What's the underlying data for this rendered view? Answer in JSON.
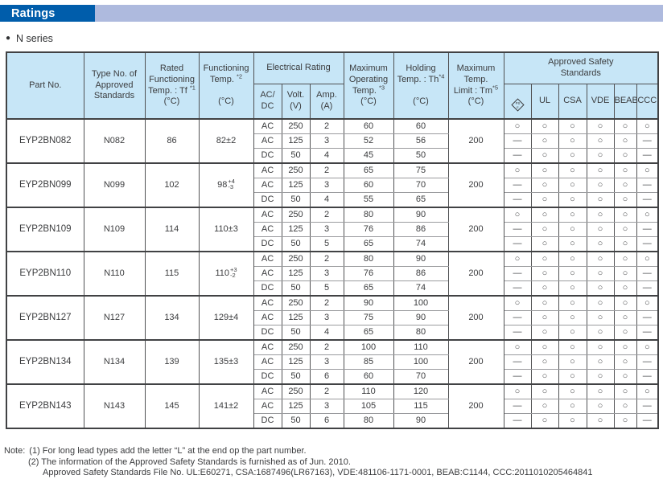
{
  "banner": {
    "title": "Ratings",
    "dark_color": "#005dab",
    "light_color": "#aebade"
  },
  "series_label": "N series",
  "table": {
    "header": {
      "part_no": "Part No.",
      "type_no": "Type No. of\nApproved\nStandards",
      "rated_l1": "Rated\nFunctioning\nTemp. : Tf ",
      "rated_sup": "*1",
      "rated_l2": "\n(°C)",
      "functioning_l1": "Functioning\nTemp. ",
      "functioning_sup": "*2",
      "functioning_l2": "\n\n(°C)",
      "electrical_rating": "Electrical Rating",
      "acdc": "AC/\nDC",
      "volt": "Volt.\n(V)",
      "amp": "Amp.\n(A)",
      "max_operating_l1": "Maximum\nOperating\nTemp. ",
      "max_operating_sup": "*3",
      "max_operating_l2": "\n(°C)",
      "holding_l1": "Holding\nTemp. : Th",
      "holding_sup": "*4",
      "holding_l2": "\n\n(°C)",
      "max_limit_l1": "Maximum\nTemp.\nLimit : Tm",
      "max_limit_sup": "*5",
      "max_limit_l2": "\n(°C)",
      "approved": "Approved Safety\nStandards",
      "pse_mark": {
        "line1": "PS",
        "line2": "E"
      },
      "approvals": [
        "UL",
        "CSA",
        "VDE",
        "BEAB",
        "CCC"
      ],
      "approval_names": [
        "pse",
        "ul",
        "csa",
        "vde",
        "beab",
        "ccc"
      ]
    },
    "rows": [
      {
        "part_no": "EYP2BN082",
        "type_no": "N082",
        "rated": "86",
        "functioning": {
          "value": "82±2"
        },
        "max_temp_limit": "200",
        "sub": [
          {
            "acdc": "AC",
            "volt": "250",
            "amp": "2",
            "max_op": "60",
            "holding": "60",
            "marks": [
              "○",
              "○",
              "○",
              "○",
              "○",
              "○"
            ]
          },
          {
            "acdc": "AC",
            "volt": "125",
            "amp": "3",
            "max_op": "52",
            "holding": "56",
            "marks": [
              "—",
              "○",
              "○",
              "○",
              "○",
              "—"
            ]
          },
          {
            "acdc": "DC",
            "volt": "50",
            "amp": "4",
            "max_op": "45",
            "holding": "50",
            "marks": [
              "—",
              "○",
              "○",
              "○",
              "○",
              "—"
            ]
          }
        ]
      },
      {
        "part_no": "EYP2BN099",
        "type_no": "N099",
        "rated": "102",
        "functioning": {
          "value": "98",
          "plus": "+4",
          "minus": "-3"
        },
        "max_temp_limit": "200",
        "sub": [
          {
            "acdc": "AC",
            "volt": "250",
            "amp": "2",
            "max_op": "65",
            "holding": "75",
            "marks": [
              "○",
              "○",
              "○",
              "○",
              "○",
              "○"
            ]
          },
          {
            "acdc": "AC",
            "volt": "125",
            "amp": "3",
            "max_op": "60",
            "holding": "70",
            "marks": [
              "—",
              "○",
              "○",
              "○",
              "○",
              "—"
            ]
          },
          {
            "acdc": "DC",
            "volt": "50",
            "amp": "4",
            "max_op": "55",
            "holding": "65",
            "marks": [
              "—",
              "○",
              "○",
              "○",
              "○",
              "—"
            ]
          }
        ]
      },
      {
        "part_no": "EYP2BN109",
        "type_no": "N109",
        "rated": "114",
        "functioning": {
          "value": "110±3"
        },
        "max_temp_limit": "200",
        "sub": [
          {
            "acdc": "AC",
            "volt": "250",
            "amp": "2",
            "max_op": "80",
            "holding": "90",
            "marks": [
              "○",
              "○",
              "○",
              "○",
              "○",
              "○"
            ]
          },
          {
            "acdc": "AC",
            "volt": "125",
            "amp": "3",
            "max_op": "76",
            "holding": "86",
            "marks": [
              "—",
              "○",
              "○",
              "○",
              "○",
              "—"
            ]
          },
          {
            "acdc": "DC",
            "volt": "50",
            "amp": "5",
            "max_op": "65",
            "holding": "74",
            "marks": [
              "—",
              "○",
              "○",
              "○",
              "○",
              "—"
            ]
          }
        ]
      },
      {
        "part_no": "EYP2BN110",
        "type_no": "N110",
        "rated": "115",
        "functioning": {
          "value": "110",
          "plus": "+3",
          "minus": "-2"
        },
        "max_temp_limit": "200",
        "sub": [
          {
            "acdc": "AC",
            "volt": "250",
            "amp": "2",
            "max_op": "80",
            "holding": "90",
            "marks": [
              "○",
              "○",
              "○",
              "○",
              "○",
              "○"
            ]
          },
          {
            "acdc": "AC",
            "volt": "125",
            "amp": "3",
            "max_op": "76",
            "holding": "86",
            "marks": [
              "—",
              "○",
              "○",
              "○",
              "○",
              "—"
            ]
          },
          {
            "acdc": "DC",
            "volt": "50",
            "amp": "5",
            "max_op": "65",
            "holding": "74",
            "marks": [
              "—",
              "○",
              "○",
              "○",
              "○",
              "—"
            ]
          }
        ]
      },
      {
        "part_no": "EYP2BN127",
        "type_no": "N127",
        "rated": "134",
        "functioning": {
          "value": "129±4"
        },
        "max_temp_limit": "200",
        "sub": [
          {
            "acdc": "AC",
            "volt": "250",
            "amp": "2",
            "max_op": "90",
            "holding": "100",
            "marks": [
              "○",
              "○",
              "○",
              "○",
              "○",
              "○"
            ]
          },
          {
            "acdc": "AC",
            "volt": "125",
            "amp": "3",
            "max_op": "75",
            "holding": "90",
            "marks": [
              "—",
              "○",
              "○",
              "○",
              "○",
              "—"
            ]
          },
          {
            "acdc": "DC",
            "volt": "50",
            "amp": "4",
            "max_op": "65",
            "holding": "80",
            "marks": [
              "—",
              "○",
              "○",
              "○",
              "○",
              "—"
            ]
          }
        ]
      },
      {
        "part_no": "EYP2BN134",
        "type_no": "N134",
        "rated": "139",
        "functioning": {
          "value": "135±3"
        },
        "max_temp_limit": "200",
        "sub": [
          {
            "acdc": "AC",
            "volt": "250",
            "amp": "2",
            "max_op": "100",
            "holding": "110",
            "marks": [
              "○",
              "○",
              "○",
              "○",
              "○",
              "○"
            ]
          },
          {
            "acdc": "AC",
            "volt": "125",
            "amp": "3",
            "max_op": "85",
            "holding": "100",
            "marks": [
              "—",
              "○",
              "○",
              "○",
              "○",
              "—"
            ]
          },
          {
            "acdc": "DC",
            "volt": "50",
            "amp": "6",
            "max_op": "60",
            "holding": "70",
            "marks": [
              "—",
              "○",
              "○",
              "○",
              "○",
              "—"
            ]
          }
        ]
      },
      {
        "part_no": "EYP2BN143",
        "type_no": "N143",
        "rated": "145",
        "functioning": {
          "value": "141±2"
        },
        "max_temp_limit": "200",
        "sub": [
          {
            "acdc": "AC",
            "volt": "250",
            "amp": "2",
            "max_op": "110",
            "holding": "120",
            "marks": [
              "○",
              "○",
              "○",
              "○",
              "○",
              "○"
            ]
          },
          {
            "acdc": "AC",
            "volt": "125",
            "amp": "3",
            "max_op": "105",
            "holding": "115",
            "marks": [
              "—",
              "○",
              "○",
              "○",
              "○",
              "—"
            ]
          },
          {
            "acdc": "DC",
            "volt": "50",
            "amp": "6",
            "max_op": "80",
            "holding": "90",
            "marks": [
              "—",
              "○",
              "○",
              "○",
              "○",
              "—"
            ]
          }
        ]
      }
    ]
  },
  "notes": {
    "label": "Note:",
    "items": [
      "(1) For long lead types add the letter “L” at the end op the part number.",
      "(2) The information of the Approved Safety Standards is furnished as of Jun. 2010.",
      "Approved Safety Standards File No. UL:E60271, CSA:1687496(LR67163), VDE:481106-1171-0001, BEAB:C1144, CCC:2011010205464841"
    ]
  }
}
